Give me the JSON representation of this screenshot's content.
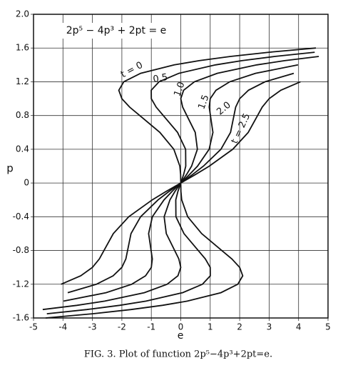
{
  "chart_data": {
    "type": "line",
    "annotation": "2p⁵ − 4p³ + 2pt = e",
    "caption": "FIG. 3. Plot of function 2p⁵−4p³+2pt=e.",
    "x_label": "e",
    "y_label": "p",
    "xlim": [
      -5,
      5
    ],
    "xticks": [
      -5,
      -4,
      -3,
      -2,
      -1,
      0,
      1,
      2,
      3,
      4,
      5
    ],
    "ylim": [
      -1.6,
      2.0
    ],
    "yticks": [
      -1.6,
      -1.2,
      -0.8,
      -0.4,
      0,
      0.4,
      0.8,
      1.2,
      1.6,
      {
        "value": 2.0,
        "label": "2.0"
      }
    ],
    "grid": true,
    "series": [
      {
        "name": "t = 0",
        "color": "#111111",
        "x": [
          -4.588,
          -2.998,
          -1.688,
          -0.625,
          0.22,
          1.362,
          1.935,
          2.103,
          2,
          1.735,
          1.393,
          0.709,
          0.236,
          0.031,
          0.004,
          0,
          -0.004,
          -0.031,
          -0.236,
          -0.709,
          -1.393,
          -1.735,
          -2,
          -2.103,
          -1.935,
          -1.362,
          -0.22,
          0.625,
          1.688,
          2.998,
          4.588
        ],
        "values": [
          -1.6,
          -1.55,
          -1.5,
          -1.45,
          -1.4,
          -1.3,
          -1.2,
          -1.1,
          -1,
          -0.9,
          -0.8,
          -0.6,
          -0.4,
          -0.2,
          -0.1,
          0,
          0.1,
          0.2,
          0.4,
          0.6,
          0.8,
          0.9,
          1,
          1.1,
          1.2,
          1.3,
          1.4,
          1.45,
          1.5,
          1.55,
          1.6
        ]
      },
      {
        "name": "0.5",
        "color": "#111111",
        "x": [
          -4.548,
          -3.188,
          -2.075,
          -1.18,
          0.062,
          0.735,
          1.003,
          1,
          0.835,
          0.593,
          0.109,
          -0.164,
          -0.169,
          -0.096,
          0,
          0.096,
          0.169,
          0.164,
          -0.109,
          -0.593,
          -0.835,
          -1,
          -1.003,
          -0.735,
          -0.062,
          1.18,
          2.075,
          3.188,
          4.548
        ],
        "values": [
          -1.55,
          -1.5,
          -1.45,
          -1.4,
          -1.3,
          -1.2,
          -1.1,
          -1,
          -0.9,
          -0.8,
          -0.6,
          -0.4,
          -0.2,
          -0.1,
          0,
          0.1,
          0.2,
          0.4,
          0.6,
          0.8,
          0.9,
          1,
          1.1,
          1.2,
          1.3,
          1.4,
          1.45,
          1.5,
          1.55
        ]
      },
      {
        "name": "1.0",
        "color": "#111111",
        "x": [
          -4.688,
          -3.525,
          -2.58,
          -1.238,
          -0.465,
          -0.097,
          0,
          -0.065,
          -0.207,
          -0.491,
          -0.564,
          -0.369,
          -0.196,
          0,
          0.196,
          0.369,
          0.564,
          0.491,
          0.207,
          0.065,
          0,
          0.097,
          0.465,
          1.238,
          2.58,
          3.525,
          4.688
        ],
        "values": [
          -1.5,
          -1.45,
          -1.4,
          -1.3,
          -1.2,
          -1.1,
          -1,
          -0.9,
          -0.8,
          -0.6,
          -0.4,
          -0.2,
          -0.1,
          0,
          0.1,
          0.2,
          0.4,
          0.6,
          0.8,
          0.9,
          1,
          1.1,
          1.2,
          1.3,
          1.4,
          1.45,
          1.5
        ]
      },
      {
        "name": "1.5",
        "color": "#111111",
        "x": [
          -3.98,
          -2.538,
          -1.665,
          -1.197,
          -1,
          -0.965,
          -1.007,
          -1.091,
          -0.964,
          -0.569,
          -0.296,
          0,
          0.296,
          0.569,
          0.964,
          1.091,
          1.007,
          0.965,
          1,
          1.197,
          1.665,
          2.538,
          3.98
        ],
        "values": [
          -1.4,
          -1.3,
          -1.2,
          -1.1,
          -1,
          -0.9,
          -0.8,
          -0.6,
          -0.4,
          -0.2,
          -0.1,
          0,
          0.1,
          0.2,
          0.4,
          0.6,
          0.8,
          0.9,
          1,
          1.1,
          1.2,
          1.3,
          1.4
        ]
      },
      {
        "name": "2.0",
        "color": "#111111",
        "x": [
          -3.838,
          -2.865,
          -2.297,
          -2,
          -1.865,
          -1.807,
          -1.691,
          -1.364,
          -0.769,
          -0.396,
          0,
          0.396,
          0.769,
          1.364,
          1.691,
          1.807,
          1.865,
          2,
          2.297,
          2.865,
          3.838
        ],
        "values": [
          -1.3,
          -1.2,
          -1.1,
          -1,
          -0.9,
          -0.8,
          -0.6,
          -0.4,
          -0.2,
          -0.1,
          0,
          0.1,
          0.2,
          0.4,
          0.6,
          0.8,
          0.9,
          1,
          1.1,
          1.2,
          1.3
        ]
      },
      {
        "name": "t = 2.5",
        "color": "#111111",
        "x": [
          -4.065,
          -3.397,
          -3,
          -2.765,
          -2.607,
          -2.291,
          -1.764,
          -0.969,
          -0.496,
          0,
          0.496,
          0.969,
          1.764,
          2.291,
          2.607,
          2.765,
          3,
          3.397,
          4.065
        ],
        "values": [
          -1.2,
          -1.1,
          -1,
          -0.9,
          -0.8,
          -0.6,
          -0.4,
          -0.2,
          -0.1,
          0,
          0.1,
          0.2,
          0.4,
          0.6,
          0.8,
          0.9,
          1,
          1.1,
          1.2
        ]
      }
    ]
  }
}
